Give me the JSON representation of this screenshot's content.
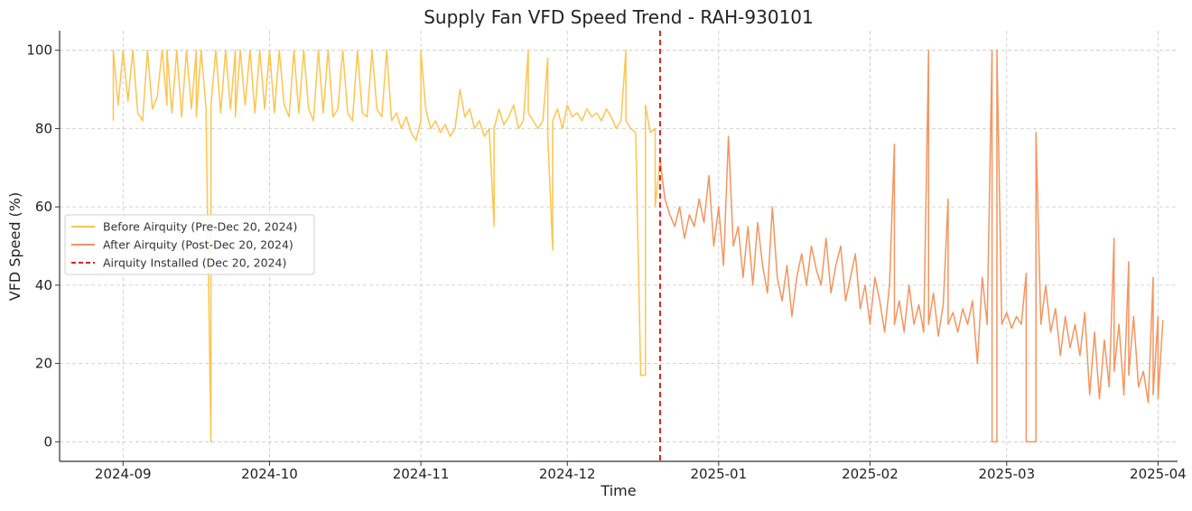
{
  "chart_data": {
    "type": "line",
    "title": "Supply Fan VFD Speed Trend - RAH-930101",
    "xlabel": "Time",
    "ylabel": "VFD Speed (%)",
    "xlim": [
      "2024-08-19",
      "2025-04-05"
    ],
    "ylim": [
      -5,
      105
    ],
    "x_ticks": [
      "2024-09",
      "2024-10",
      "2024-11",
      "2024-12",
      "2025-01",
      "2025-02",
      "2025-03",
      "2025-04"
    ],
    "y_ticks": [
      0,
      20,
      40,
      60,
      80,
      100
    ],
    "grid": true,
    "legend_position": "center-left",
    "installation": {
      "label": "Airquity Installed (Dec 20, 2024)",
      "date": "2024-12-20",
      "color": "#e02020"
    },
    "series": [
      {
        "name": "Before Airquity (Pre-Dec 20, 2024)",
        "color": "#fec44f",
        "points": [
          [
            "2024-08-30",
            82
          ],
          [
            "2024-08-30",
            100
          ],
          [
            "2024-08-31",
            86
          ],
          [
            "2024-09-01",
            100
          ],
          [
            "2024-09-02",
            87
          ],
          [
            "2024-09-03",
            100
          ],
          [
            "2024-09-04",
            84
          ],
          [
            "2024-09-05",
            82
          ],
          [
            "2024-09-06",
            100
          ],
          [
            "2024-09-07",
            85
          ],
          [
            "2024-09-08",
            88
          ],
          [
            "2024-09-09",
            100
          ],
          [
            "2024-09-10",
            86
          ],
          [
            "2024-09-10",
            100
          ],
          [
            "2024-09-11",
            84
          ],
          [
            "2024-09-12",
            100
          ],
          [
            "2024-09-13",
            83
          ],
          [
            "2024-09-14",
            100
          ],
          [
            "2024-09-15",
            85
          ],
          [
            "2024-09-16",
            100
          ],
          [
            "2024-09-16",
            83
          ],
          [
            "2024-09-17",
            100
          ],
          [
            "2024-09-18",
            85
          ],
          [
            "2024-09-18",
            83
          ],
          [
            "2024-09-19",
            0
          ],
          [
            "2024-09-19",
            86
          ],
          [
            "2024-09-20",
            100
          ],
          [
            "2024-09-21",
            84
          ],
          [
            "2024-09-22",
            100
          ],
          [
            "2024-09-23",
            85
          ],
          [
            "2024-09-24",
            100
          ],
          [
            "2024-09-24",
            83
          ],
          [
            "2024-09-25",
            100
          ],
          [
            "2024-09-26",
            86
          ],
          [
            "2024-09-27",
            100
          ],
          [
            "2024-09-28",
            84
          ],
          [
            "2024-09-29",
            100
          ],
          [
            "2024-09-30",
            85
          ],
          [
            "2024-10-01",
            100
          ],
          [
            "2024-10-02",
            84
          ],
          [
            "2024-10-03",
            100
          ],
          [
            "2024-10-04",
            86
          ],
          [
            "2024-10-05",
            83
          ],
          [
            "2024-10-06",
            100
          ],
          [
            "2024-10-07",
            84
          ],
          [
            "2024-10-08",
            100
          ],
          [
            "2024-10-09",
            85
          ],
          [
            "2024-10-10",
            82
          ],
          [
            "2024-10-11",
            100
          ],
          [
            "2024-10-12",
            84
          ],
          [
            "2024-10-13",
            100
          ],
          [
            "2024-10-14",
            83
          ],
          [
            "2024-10-15",
            85
          ],
          [
            "2024-10-16",
            100
          ],
          [
            "2024-10-17",
            84
          ],
          [
            "2024-10-18",
            82
          ],
          [
            "2024-10-19",
            100
          ],
          [
            "2024-10-20",
            84
          ],
          [
            "2024-10-21",
            83
          ],
          [
            "2024-10-22",
            100
          ],
          [
            "2024-10-23",
            85
          ],
          [
            "2024-10-24",
            83
          ],
          [
            "2024-10-25",
            100
          ],
          [
            "2024-10-26",
            82
          ],
          [
            "2024-10-27",
            84
          ],
          [
            "2024-10-28",
            80
          ],
          [
            "2024-10-29",
            83
          ],
          [
            "2024-10-30",
            79
          ],
          [
            "2024-10-31",
            77
          ],
          [
            "2024-11-01",
            82
          ],
          [
            "2024-11-01",
            100
          ],
          [
            "2024-11-02",
            85
          ],
          [
            "2024-11-03",
            80
          ],
          [
            "2024-11-04",
            82
          ],
          [
            "2024-11-05",
            79
          ],
          [
            "2024-11-06",
            81
          ],
          [
            "2024-11-07",
            78
          ],
          [
            "2024-11-08",
            80
          ],
          [
            "2024-11-09",
            90
          ],
          [
            "2024-11-10",
            83
          ],
          [
            "2024-11-11",
            85
          ],
          [
            "2024-11-12",
            80
          ],
          [
            "2024-11-13",
            82
          ],
          [
            "2024-11-14",
            78
          ],
          [
            "2024-11-15",
            80
          ],
          [
            "2024-11-16",
            55
          ],
          [
            "2024-11-16",
            80
          ],
          [
            "2024-11-17",
            85
          ],
          [
            "2024-11-18",
            81
          ],
          [
            "2024-11-19",
            83
          ],
          [
            "2024-11-20",
            86
          ],
          [
            "2024-11-21",
            80
          ],
          [
            "2024-11-22",
            82
          ],
          [
            "2024-11-23",
            100
          ],
          [
            "2024-11-23",
            84
          ],
          [
            "2024-11-24",
            82
          ],
          [
            "2024-11-25",
            80
          ],
          [
            "2024-11-26",
            82
          ],
          [
            "2024-11-27",
            98
          ],
          [
            "2024-11-27",
            78
          ],
          [
            "2024-11-28",
            49
          ],
          [
            "2024-11-28",
            82
          ],
          [
            "2024-11-29",
            85
          ],
          [
            "2024-11-30",
            80
          ],
          [
            "2024-12-01",
            86
          ],
          [
            "2024-12-02",
            83
          ],
          [
            "2024-12-03",
            84
          ],
          [
            "2024-12-04",
            82
          ],
          [
            "2024-12-05",
            85
          ],
          [
            "2024-12-06",
            83
          ],
          [
            "2024-12-07",
            84
          ],
          [
            "2024-12-08",
            82
          ],
          [
            "2024-12-09",
            85
          ],
          [
            "2024-12-10",
            83
          ],
          [
            "2024-12-11",
            80
          ],
          [
            "2024-12-12",
            82
          ],
          [
            "2024-12-13",
            100
          ],
          [
            "2024-12-13",
            82
          ],
          [
            "2024-12-14",
            80
          ],
          [
            "2024-12-15",
            79
          ],
          [
            "2024-12-16",
            19
          ],
          [
            "2024-12-16",
            17
          ],
          [
            "2024-12-17",
            17
          ],
          [
            "2024-12-17",
            86
          ],
          [
            "2024-12-18",
            79
          ],
          [
            "2024-12-19",
            80
          ],
          [
            "2024-12-19",
            60
          ],
          [
            "2024-12-20",
            72
          ]
        ]
      },
      {
        "name": "After Airquity (Post-Dec 20, 2024)",
        "color": "#f4955f",
        "points": [
          [
            "2024-12-20",
            72
          ],
          [
            "2024-12-21",
            62
          ],
          [
            "2024-12-22",
            58
          ],
          [
            "2024-12-23",
            55
          ],
          [
            "2024-12-24",
            60
          ],
          [
            "2024-12-25",
            52
          ],
          [
            "2024-12-26",
            58
          ],
          [
            "2024-12-27",
            55
          ],
          [
            "2024-12-28",
            62
          ],
          [
            "2024-12-29",
            56
          ],
          [
            "2024-12-30",
            68
          ],
          [
            "2024-12-31",
            50
          ],
          [
            "2025-01-01",
            60
          ],
          [
            "2025-01-02",
            45
          ],
          [
            "2025-01-03",
            78
          ],
          [
            "2025-01-04",
            50
          ],
          [
            "2025-01-05",
            55
          ],
          [
            "2025-01-06",
            42
          ],
          [
            "2025-01-07",
            55
          ],
          [
            "2025-01-08",
            40
          ],
          [
            "2025-01-09",
            56
          ],
          [
            "2025-01-10",
            45
          ],
          [
            "2025-01-11",
            38
          ],
          [
            "2025-01-12",
            60
          ],
          [
            "2025-01-13",
            42
          ],
          [
            "2025-01-14",
            36
          ],
          [
            "2025-01-15",
            45
          ],
          [
            "2025-01-16",
            32
          ],
          [
            "2025-01-17",
            42
          ],
          [
            "2025-01-18",
            48
          ],
          [
            "2025-01-19",
            40
          ],
          [
            "2025-01-20",
            50
          ],
          [
            "2025-01-21",
            44
          ],
          [
            "2025-01-22",
            40
          ],
          [
            "2025-01-23",
            52
          ],
          [
            "2025-01-24",
            38
          ],
          [
            "2025-01-25",
            45
          ],
          [
            "2025-01-26",
            50
          ],
          [
            "2025-01-27",
            36
          ],
          [
            "2025-01-28",
            42
          ],
          [
            "2025-01-29",
            48
          ],
          [
            "2025-01-30",
            34
          ],
          [
            "2025-01-31",
            40
          ],
          [
            "2025-02-01",
            30
          ],
          [
            "2025-02-02",
            42
          ],
          [
            "2025-02-03",
            36
          ],
          [
            "2025-02-04",
            28
          ],
          [
            "2025-02-05",
            40
          ],
          [
            "2025-02-06",
            76
          ],
          [
            "2025-02-06",
            30
          ],
          [
            "2025-02-07",
            36
          ],
          [
            "2025-02-08",
            28
          ],
          [
            "2025-02-09",
            40
          ],
          [
            "2025-02-10",
            30
          ],
          [
            "2025-02-11",
            35
          ],
          [
            "2025-02-12",
            28
          ],
          [
            "2025-02-13",
            100
          ],
          [
            "2025-02-13",
            30
          ],
          [
            "2025-02-14",
            38
          ],
          [
            "2025-02-15",
            27
          ],
          [
            "2025-02-16",
            35
          ],
          [
            "2025-02-17",
            62
          ],
          [
            "2025-02-17",
            30
          ],
          [
            "2025-02-18",
            33
          ],
          [
            "2025-02-19",
            28
          ],
          [
            "2025-02-20",
            34
          ],
          [
            "2025-02-21",
            30
          ],
          [
            "2025-02-22",
            36
          ],
          [
            "2025-02-23",
            20
          ],
          [
            "2025-02-24",
            42
          ],
          [
            "2025-02-25",
            30
          ],
          [
            "2025-02-26",
            100
          ],
          [
            "2025-02-26",
            0
          ],
          [
            "2025-02-27",
            0
          ],
          [
            "2025-02-27",
            100
          ],
          [
            "2025-02-28",
            30
          ],
          [
            "2025-03-01",
            33
          ],
          [
            "2025-03-02",
            29
          ],
          [
            "2025-03-03",
            32
          ],
          [
            "2025-03-04",
            30
          ],
          [
            "2025-03-05",
            43
          ],
          [
            "2025-03-05",
            0
          ],
          [
            "2025-03-06",
            0
          ],
          [
            "2025-03-07",
            0
          ],
          [
            "2025-03-07",
            79
          ],
          [
            "2025-03-08",
            30
          ],
          [
            "2025-03-09",
            40
          ],
          [
            "2025-03-10",
            28
          ],
          [
            "2025-03-11",
            34
          ],
          [
            "2025-03-12",
            22
          ],
          [
            "2025-03-13",
            32
          ],
          [
            "2025-03-14",
            24
          ],
          [
            "2025-03-15",
            30
          ],
          [
            "2025-03-16",
            22
          ],
          [
            "2025-03-17",
            33
          ],
          [
            "2025-03-18",
            12
          ],
          [
            "2025-03-19",
            28
          ],
          [
            "2025-03-20",
            11
          ],
          [
            "2025-03-21",
            26
          ],
          [
            "2025-03-22",
            14
          ],
          [
            "2025-03-23",
            52
          ],
          [
            "2025-03-23",
            18
          ],
          [
            "2025-03-24",
            30
          ],
          [
            "2025-03-25",
            12
          ],
          [
            "2025-03-26",
            46
          ],
          [
            "2025-03-26",
            17
          ],
          [
            "2025-03-27",
            32
          ],
          [
            "2025-03-28",
            14
          ],
          [
            "2025-03-29",
            18
          ],
          [
            "2025-03-30",
            10
          ],
          [
            "2025-03-31",
            42
          ],
          [
            "2025-03-31",
            12
          ],
          [
            "2025-04-01",
            32
          ],
          [
            "2025-04-01",
            11
          ],
          [
            "2025-04-02",
            31
          ]
        ]
      }
    ]
  }
}
